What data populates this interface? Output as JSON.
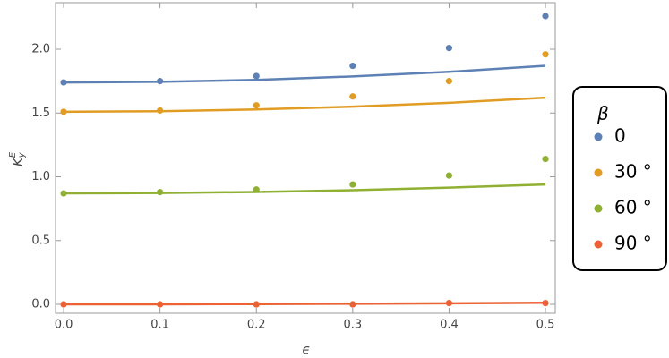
{
  "chart_data": {
    "type": "scatter",
    "x": [
      0,
      0.1,
      0.2,
      0.3,
      0.4,
      0.5
    ],
    "xlabel": "ϵ",
    "ylabel": {
      "base": "K",
      "sub": "y",
      "sup": "E"
    },
    "legend_title": "β",
    "legend_position": "right",
    "series": [
      {
        "name": "0",
        "color": "#5e81b5",
        "values": [
          1.74,
          1.75,
          1.79,
          1.87,
          2.01,
          2.26
        ]
      },
      {
        "name": "30 °",
        "color": "#e19c24",
        "values": [
          1.51,
          1.52,
          1.56,
          1.63,
          1.75,
          1.96
        ]
      },
      {
        "name": "60 °",
        "color": "#8fb032",
        "values": [
          0.87,
          0.88,
          0.9,
          0.94,
          1.01,
          1.14
        ]
      },
      {
        "name": "90 °",
        "color": "#eb6235",
        "values": [
          0,
          0,
          0,
          0,
          0.01,
          0.01
        ]
      }
    ],
    "fit_lines": [
      {
        "color": "#5e81b5",
        "values": [
          1.74,
          1.745,
          1.76,
          1.787,
          1.823,
          1.87
        ]
      },
      {
        "color": "#e19c24",
        "values": [
          1.51,
          1.514,
          1.528,
          1.55,
          1.58,
          1.62
        ]
      },
      {
        "color": "#8fb032",
        "values": [
          0.87,
          0.873,
          0.881,
          0.895,
          0.915,
          0.94
        ]
      },
      {
        "color": "#eb6235",
        "values": [
          0,
          0.0005,
          0.002,
          0.0045,
          0.008,
          0.0125
        ]
      }
    ],
    "xlim": [
      -0.0084,
      0.5102
    ],
    "ylim": [
      -0.07,
      2.365
    ],
    "xticks": [
      {
        "value": 0,
        "label": "0.0"
      },
      {
        "value": 0.1,
        "label": "0.1"
      },
      {
        "value": 0.2,
        "label": "0.2"
      },
      {
        "value": 0.3,
        "label": "0.3"
      },
      {
        "value": 0.4,
        "label": "0.4"
      },
      {
        "value": 0.5,
        "label": "0.5"
      }
    ],
    "yticks": [
      {
        "value": 0,
        "label": "0.0"
      },
      {
        "value": 0.5,
        "label": "0.5"
      },
      {
        "value": 1,
        "label": "1.0"
      },
      {
        "value": 1.5,
        "label": "1.5"
      },
      {
        "value": 2,
        "label": "2.0"
      }
    ],
    "grid": false
  }
}
